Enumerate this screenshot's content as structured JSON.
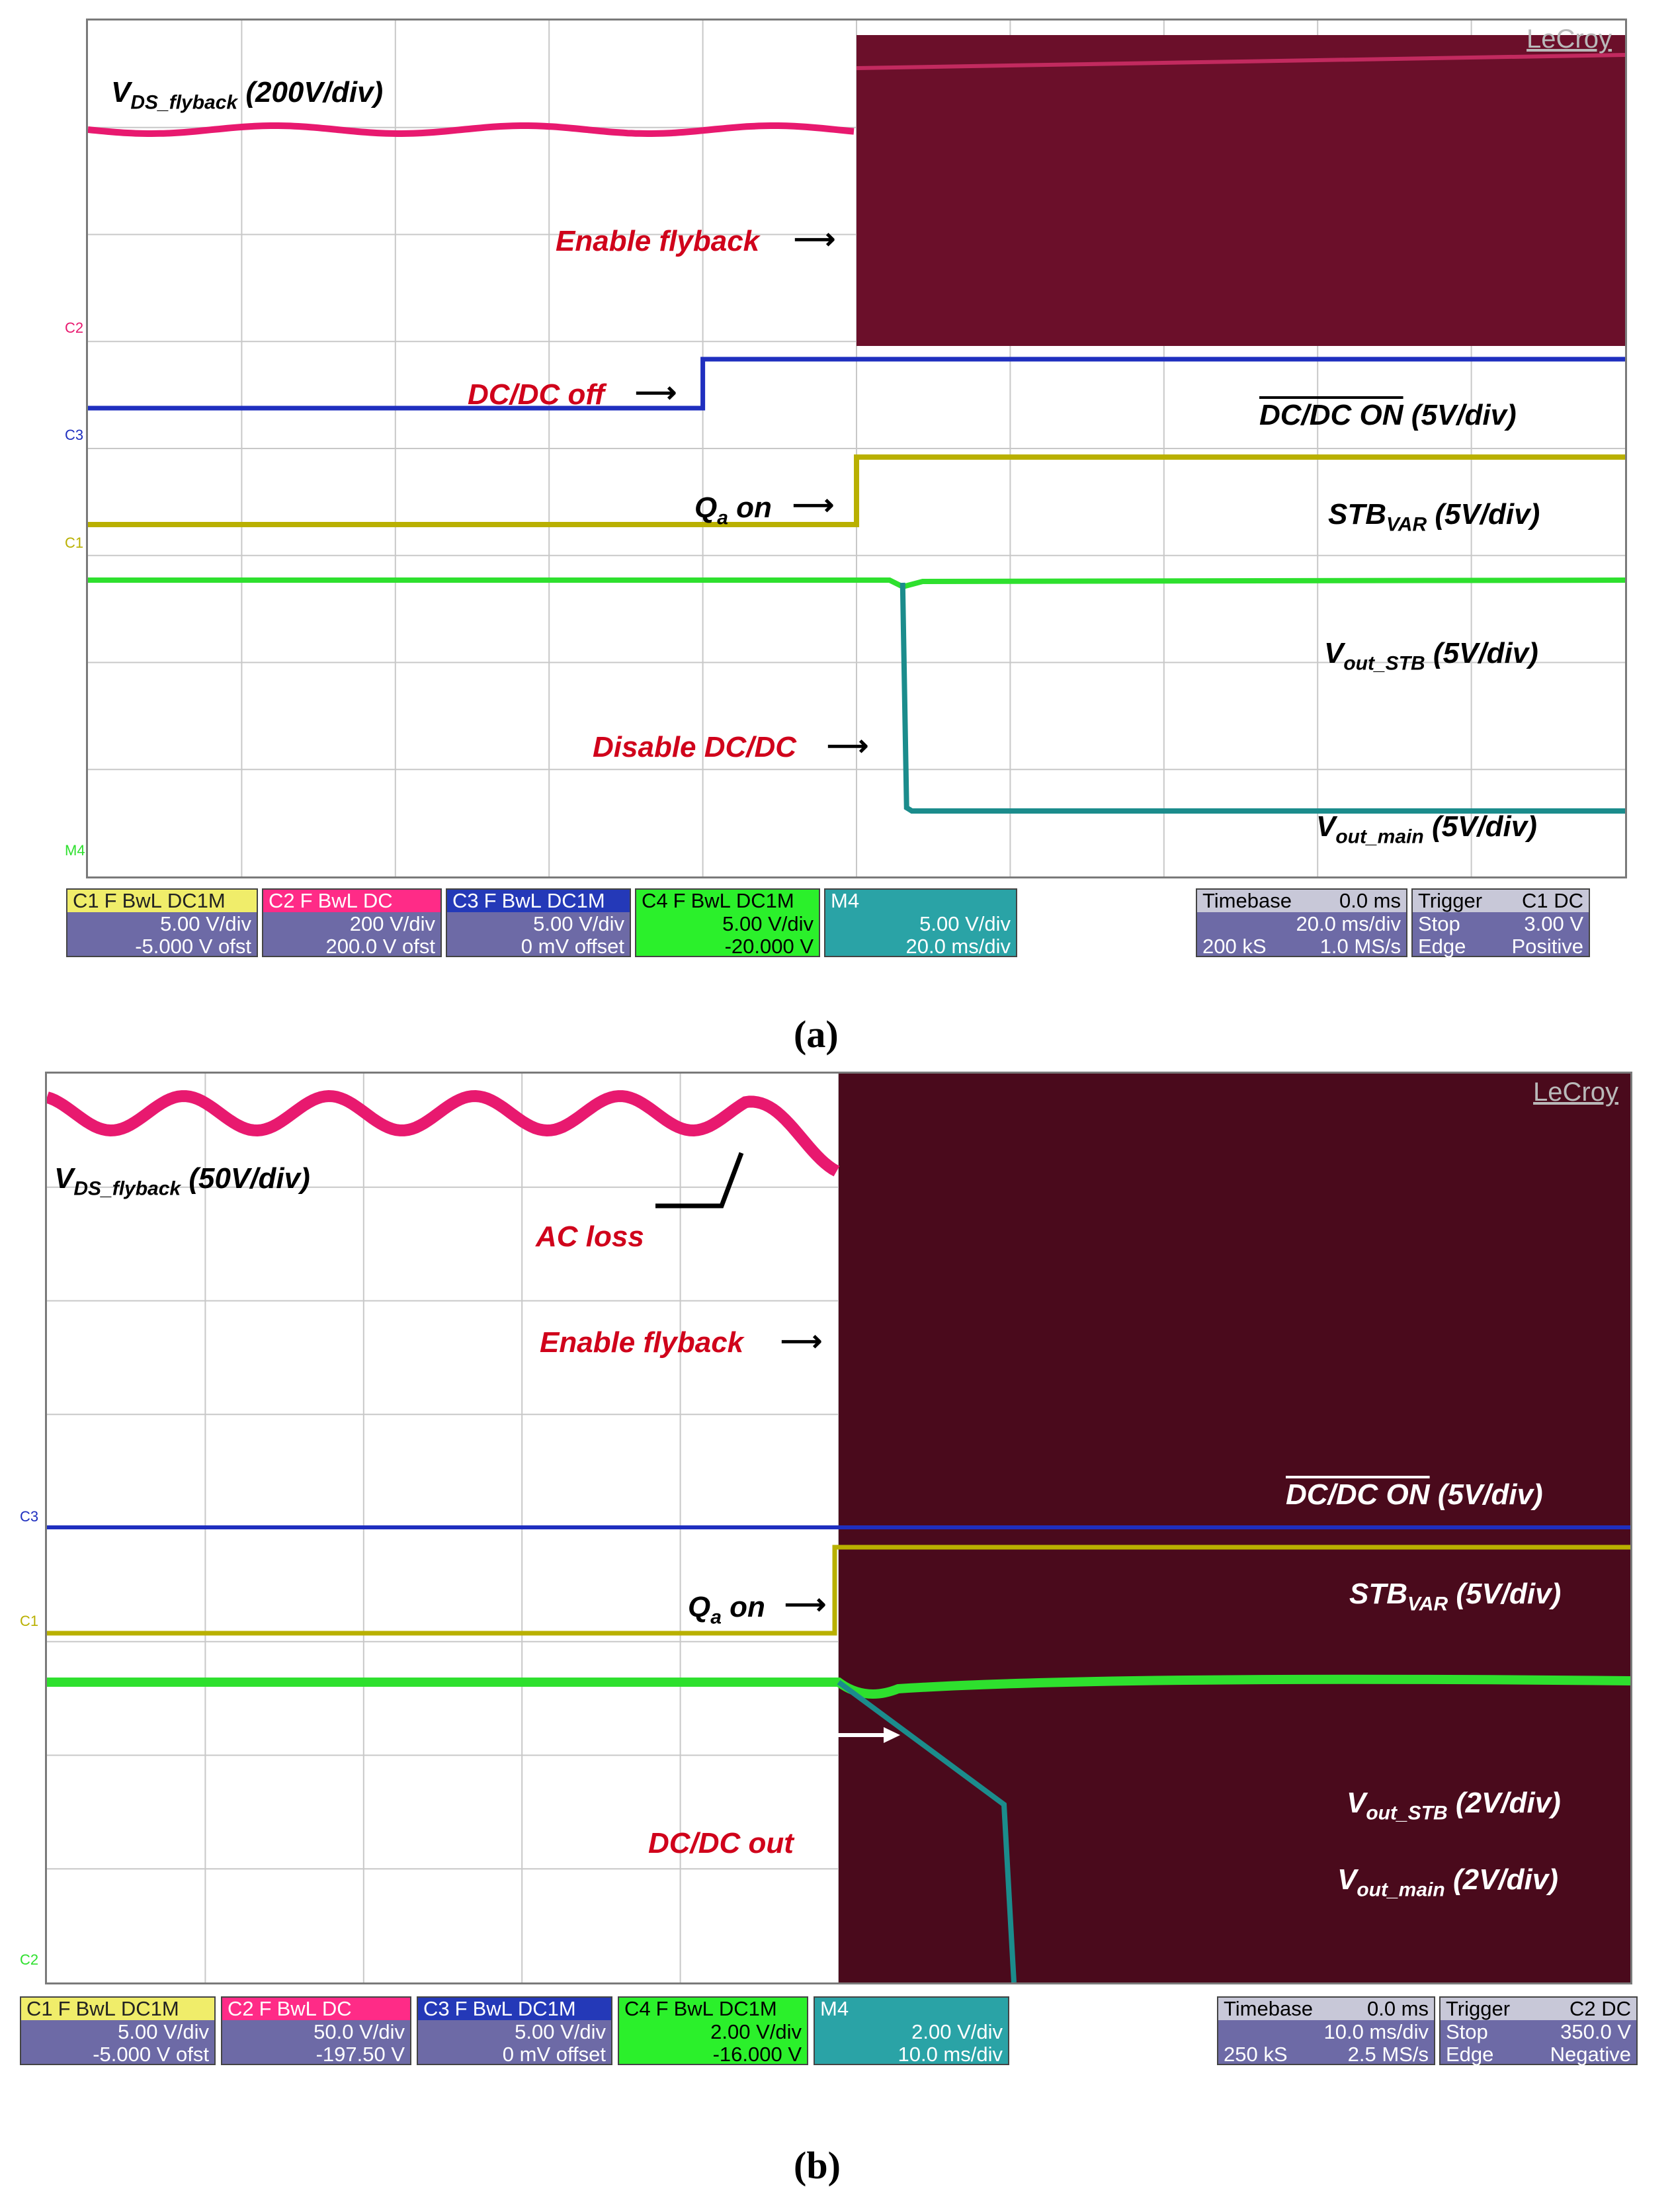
{
  "chart_data": [
    {
      "type": "line",
      "panel": "(a)",
      "caption": "(a)",
      "brand": "LeCroy",
      "grid": true,
      "grid_divisions": {
        "x": 10,
        "y": 8
      },
      "traces": [
        {
          "channel": "C2",
          "label": "V_DS_flyback (200V/div)",
          "color": "#e8196f"
        },
        {
          "channel": "C3",
          "label": "DC/DC ON (5V/div)",
          "overline": "DC/DC ON",
          "color": "#1f2fbf"
        },
        {
          "channel": "C1",
          "label": "STB_VAR (5V/div)",
          "color": "#b9b000"
        },
        {
          "channel": "C4",
          "label": "V_out_STB (5V/div)",
          "color": "#2ee02e"
        },
        {
          "channel": "M4",
          "label": "V_out_main (5V/div)",
          "color": "#1b8c8c"
        }
      ],
      "labels": {
        "vds_main": "V",
        "vds_sub": "DS_flyback",
        "vds_scale": " (200V/div)",
        "dcdc_on": "DC/DC ON",
        "dcdc_scale": " (5V/div)",
        "stb_main": "STB",
        "stb_sub": "VAR",
        "stb_scale": " (5V/div)",
        "vstb_main": "V",
        "vstb_sub": "out_STB",
        "vstb_scale": " (5V/div)",
        "vmain_main": "V",
        "vmain_sub": "out_main",
        "vmain_scale": " (5V/div)"
      },
      "annotations": {
        "enable_flyback": "Enable flyback",
        "dcdc_off": "DC/DC off",
        "qa_main": "Q",
        "qa_sub": "a",
        "qa_rest": " on",
        "disable_dcdc": "Disable DC/DC"
      },
      "events_div": {
        "dcdc_off": 4.0,
        "enable_flyback": 5.0,
        "qa_on": 5.0,
        "disable_dcdc": 5.3
      },
      "channel_markers": [
        "C2",
        "C3",
        "C1",
        "M4"
      ],
      "settings": {
        "c1": {
          "name": "C1",
          "flags": [
            "F",
            "BwL",
            "DC1M"
          ],
          "line1": "5.00 V/div",
          "line2": "-5.000 V ofst"
        },
        "c2": {
          "name": "C2",
          "flags": [
            "F",
            "BwL",
            "DC"
          ],
          "line1": "200 V/div",
          "line2": "200.0 V ofst"
        },
        "c3": {
          "name": "C3",
          "flags": [
            "F",
            "BwL",
            "DC1M"
          ],
          "line1": "5.00 V/div",
          "line2": "0 mV offset"
        },
        "c4": {
          "name": "C4",
          "flags": [
            "F",
            "BwL",
            "DC1M"
          ],
          "line1": "5.00 V/div",
          "line2": "-20.000 V"
        },
        "m4": {
          "name": "M4",
          "line1": "5.00 V/div",
          "line2": "20.0 ms/div"
        },
        "timebase": {
          "title": "Timebase",
          "delay": "0.0 ms",
          "line1": "20.0 ms/div",
          "line2a": "200 kS",
          "line2b": "1.0 MS/s"
        },
        "trigger": {
          "title": "Trigger",
          "src": "C1",
          "cpl": "DC",
          "line1a": "Stop",
          "line1b": "3.00 V",
          "line2a": "Edge",
          "line2b": "Positive"
        }
      }
    },
    {
      "type": "line",
      "panel": "(b)",
      "caption": "(b)",
      "brand": "LeCroy",
      "grid": true,
      "grid_divisions": {
        "x": 10,
        "y": 8
      },
      "traces": [
        {
          "channel": "C2",
          "label": "V_DS_flyback (50V/div)",
          "color": "#e8196f"
        },
        {
          "channel": "C3",
          "label": "DC/DC ON (5V/div)",
          "overline": "DC/DC ON",
          "color": "#1f2fbf"
        },
        {
          "channel": "C1",
          "label": "STB_VAR (5V/div)",
          "color": "#b9b000"
        },
        {
          "channel": "C4",
          "label": "V_out_STB (2V/div)",
          "color": "#2ee02e"
        },
        {
          "channel": "M4",
          "label": "V_out_main (2V/div)",
          "color": "#1b8c8c"
        }
      ],
      "labels": {
        "vds_main": "V",
        "vds_sub": "DS_flyback",
        "vds_scale": " (50V/div)",
        "dcdc_on": "DC/DC ON",
        "dcdc_scale": " (5V/div)",
        "stb_main": "STB",
        "stb_sub": "VAR",
        "stb_scale": " (5V/div)",
        "vstb_main": "V",
        "vstb_sub": "out_STB",
        "vstb_scale": " (2V/div)",
        "vmain_main": "V",
        "vmain_sub": "out_main",
        "vmain_scale": " (2V/div)"
      },
      "annotations": {
        "ac_loss": "AC loss",
        "enable_flyback": "Enable flyback",
        "qa_main": "Q",
        "qa_sub": "a",
        "qa_rest": " on",
        "dcdc_out": "DC/DC out"
      },
      "events_div": {
        "ac_loss": 5.0,
        "enable_flyback": 5.0,
        "qa_on": 5.0
      },
      "channel_markers": [
        "C3",
        "C1",
        "C2"
      ],
      "settings": {
        "c1": {
          "name": "C1",
          "flags": [
            "F",
            "BwL",
            "DC1M"
          ],
          "line1": "5.00 V/div",
          "line2": "-5.000 V ofst"
        },
        "c2": {
          "name": "C2",
          "flags": [
            "F",
            "BwL",
            "DC"
          ],
          "line1": "50.0 V/div",
          "line2": "-197.50 V"
        },
        "c3": {
          "name": "C3",
          "flags": [
            "F",
            "BwL",
            "DC1M"
          ],
          "line1": "5.00 V/div",
          "line2": "0 mV offset"
        },
        "c4": {
          "name": "C4",
          "flags": [
            "F",
            "BwL",
            "DC1M"
          ],
          "line1": "2.00 V/div",
          "line2": "-16.000 V"
        },
        "m4": {
          "name": "M4",
          "line1": "2.00 V/div",
          "line2": "10.0 ms/div"
        },
        "timebase": {
          "title": "Timebase",
          "delay": "0.0 ms",
          "line1": "10.0 ms/div",
          "line2a": "250 kS",
          "line2b": "2.5 MS/s"
        },
        "trigger": {
          "title": "Trigger",
          "src": "C2",
          "cpl": "DC",
          "line1a": "Stop",
          "line1b": "350.0 V",
          "line2a": "Edge",
          "line2b": "Negative"
        }
      }
    }
  ]
}
